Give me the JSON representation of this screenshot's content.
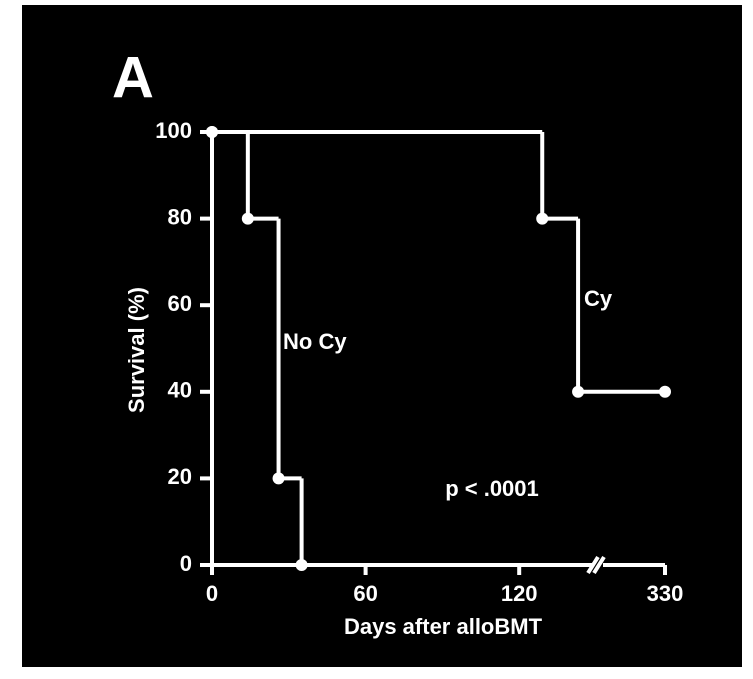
{
  "chart_data": {
    "type": "step",
    "panel_label": "A",
    "y_label": "Survival (%)",
    "x_label": "Days after alloBMT",
    "annotation": "p < .0001",
    "xlim": [
      0,
      330
    ],
    "xticks": [
      0,
      60,
      120,
      330
    ],
    "xbreak": [
      150,
      320
    ],
    "ylim": [
      0,
      100
    ],
    "yticks": [
      0,
      20,
      40,
      60,
      80,
      100
    ],
    "series": [
      {
        "name": "No Cy",
        "color": "#ffffff",
        "x": [
          0,
          14,
          26,
          35
        ],
        "values": [
          100,
          80,
          20,
          0
        ]
      },
      {
        "name": "Cy",
        "color": "#ffffff",
        "x": [
          0,
          129,
          143,
          330
        ],
        "values": [
          100,
          80,
          40,
          40
        ]
      }
    ]
  }
}
